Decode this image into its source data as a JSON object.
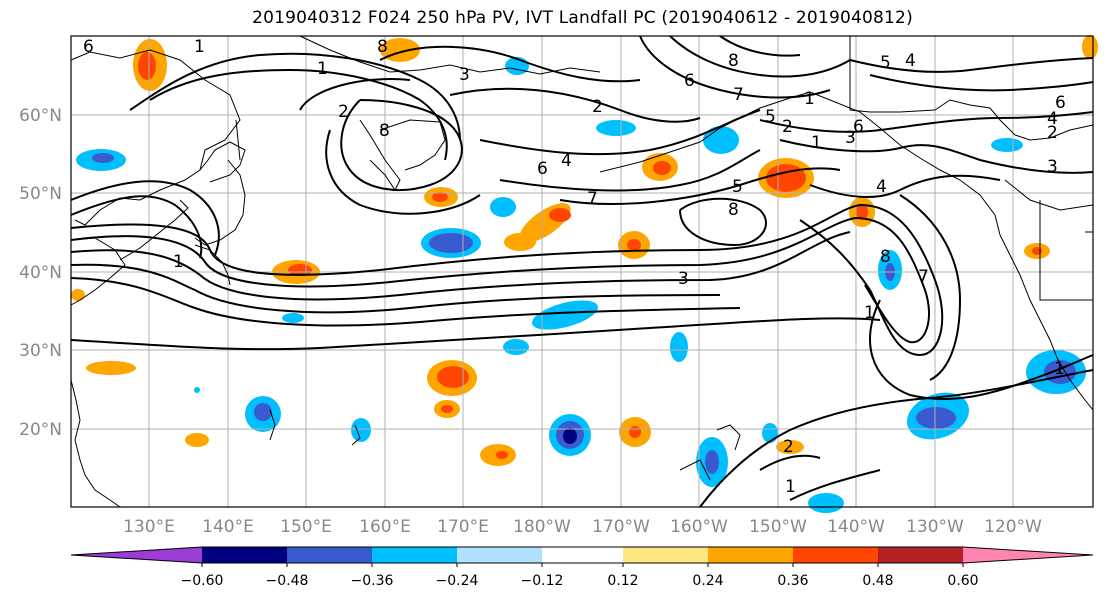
{
  "title": "2019040312 F024 250 hPa PV, IVT Landfall PC (2019040612 - 2019040812)",
  "lat_labels": [
    "60°N",
    "50°N",
    "40°N",
    "30°N",
    "20°N"
  ],
  "lon_labels": [
    "130°E",
    "140°E",
    "150°E",
    "160°E",
    "170°E",
    "180°W",
    "170°W",
    "160°W",
    "150°W",
    "140°W",
    "130°W",
    "120°W"
  ],
  "colorbar": {
    "tick_labels": [
      "−0.60",
      "−0.48",
      "−0.36",
      "−0.24",
      "−0.12",
      "0.12",
      "0.24",
      "0.36",
      "0.48",
      "0.60"
    ],
    "colors": [
      "#9b3cd6",
      "#000080",
      "#3a5bcf",
      "#00bfff",
      "#b0e2ff",
      "#ffffff",
      "#ffe680",
      "#ffa500",
      "#ff4500",
      "#b22222",
      "#ff85b0"
    ]
  },
  "contour_labels": [
    "6",
    "1",
    "3",
    "8",
    "2",
    "2",
    "6",
    "4",
    "7",
    "8",
    "6",
    "5",
    "3",
    "5",
    "4",
    "6",
    "4",
    "2",
    "3",
    "1",
    "1",
    "8",
    "3",
    "8",
    "1",
    "7",
    "2",
    "1",
    "8",
    "6",
    "5",
    "4",
    "7",
    "1",
    "1",
    "1",
    "2"
  ],
  "colors": {
    "frame": "#000000",
    "grid": "#b0b0b0",
    "contour": "#000000",
    "coast": "#000000"
  }
}
